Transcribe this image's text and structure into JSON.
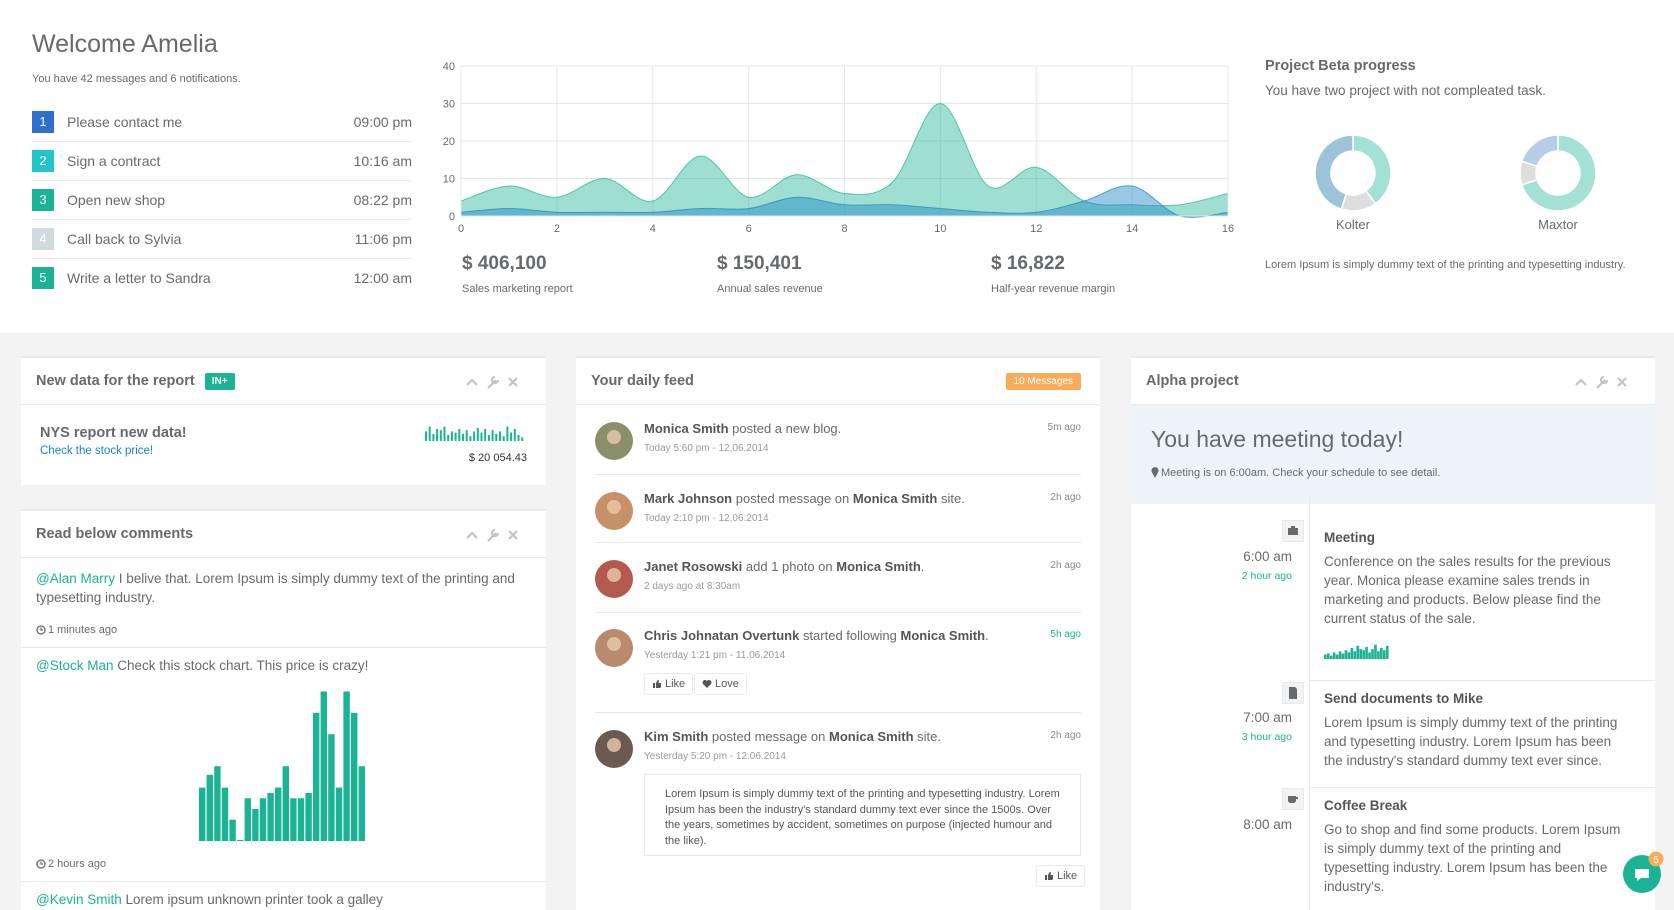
{
  "welcome": {
    "title": "Welcome Amelia",
    "subtitle": "You have 42 messages and 6 notifications.",
    "tasks": [
      {
        "number": 1,
        "text": "Please contact me",
        "time": "09:00 pm",
        "color": "#2f6fcf"
      },
      {
        "number": 2,
        "text": "Sign a contract",
        "time": "10:16 am",
        "color": "#23c6c8"
      },
      {
        "number": 3,
        "text": "Open new shop",
        "time": "08:22 pm",
        "color": "#1ab394"
      },
      {
        "number": 4,
        "text": "Call back to Sylvia",
        "time": "11:06 pm",
        "color": "#d1dade"
      },
      {
        "number": 5,
        "text": "Write a letter to Sandra",
        "time": "12:00 am",
        "color": "#1ab394"
      }
    ]
  },
  "chart_data": {
    "type": "area",
    "x": [
      0,
      1,
      2,
      3,
      4,
      5,
      6,
      7,
      8,
      9,
      10,
      11,
      12,
      13,
      14,
      15,
      16
    ],
    "series": [
      {
        "color": "#1ab394",
        "values": [
          4,
          8,
          5,
          10,
          4,
          16,
          5,
          11,
          6,
          9,
          30,
          8,
          13,
          4,
          3,
          3,
          6
        ]
      },
      {
        "color": "#1c84c6",
        "values": [
          1,
          2,
          1,
          1,
          1,
          2,
          2,
          5,
          3,
          3,
          2,
          1,
          1,
          4,
          8,
          0,
          1
        ]
      }
    ],
    "xlim": [
      0,
      16
    ],
    "ylim": [
      0,
      40
    ],
    "xticks": [
      0,
      2,
      4,
      6,
      8,
      10,
      12,
      14,
      16
    ],
    "yticks": [
      0,
      10,
      20,
      30,
      40
    ],
    "grid": true
  },
  "stats": [
    {
      "value": "$ 406,100",
      "label": "Sales marketing report"
    },
    {
      "value": "$ 150,401",
      "label": "Annual sales revenue"
    },
    {
      "value": "$ 16,822",
      "label": "Half-year revenue margin"
    }
  ],
  "project_beta": {
    "title": "Project Beta progress",
    "subtitle": "You have two project with not compleated task.",
    "donuts": [
      {
        "name": "Kolter",
        "values": [
          40,
          15,
          45
        ],
        "colors": [
          "#a3e1d4",
          "#dedede",
          "#9cc3da"
        ]
      },
      {
        "name": "Maxtor",
        "values": [
          70,
          10,
          20
        ],
        "colors": [
          "#a3e1d4",
          "#dedede",
          "#b5cde6"
        ]
      }
    ],
    "note": "Lorem Ipsum is simply dummy text of the printing and typesetting industry."
  },
  "report": {
    "title": "New data for the report",
    "badge": "IN+",
    "heading": "NYS report new data!",
    "link": "Check the stock price!",
    "amount": "$ 20 054.43",
    "sparkline": [
      8,
      12,
      6,
      10,
      9,
      12,
      5,
      8,
      7,
      10,
      6,
      9,
      4,
      8,
      11,
      7,
      10,
      5,
      9,
      6,
      8,
      4,
      12,
      7,
      10,
      5,
      3
    ]
  },
  "comments": {
    "title": "Read below comments",
    "items": [
      {
        "user": "@Alan Marry",
        "text": "I belive that. Lorem Ipsum is simply dummy text of the printing and typesetting industry.",
        "time": "1 minutes ago"
      },
      {
        "user": "@Stock Man",
        "text": "Check this stock chart. This price is crazy!",
        "time": "2 hours ago",
        "chart": [
          50,
          62,
          70,
          50,
          20,
          1,
          40,
          30,
          40,
          45,
          50,
          70,
          40,
          40,
          45,
          120,
          140,
          100,
          50,
          140,
          120,
          70
        ]
      },
      {
        "user": "@Kevin Smith",
        "text": "Lorem ipsum unknown printer took a galley"
      }
    ]
  },
  "feed": {
    "title": "Your daily feed",
    "badge": "10 Messages",
    "items": [
      {
        "author": "Monica Smith",
        "action": "posted a new blog.",
        "date": "Today 5:60 pm - 12.06.2014",
        "ago": "5m ago"
      },
      {
        "author": "Mark Johnson",
        "action": "posted message on",
        "target": "Monica Smith",
        "end": "site.",
        "date": "Today 2:10 pm - 12.06.2014",
        "ago": "2h ago"
      },
      {
        "author": "Janet Rosowski",
        "action": "add 1 photo on",
        "target": "Monica Smith",
        "end": ".",
        "date": "2 days ago at 8:30am",
        "ago": "2h ago"
      },
      {
        "author": "Chris Johnatan Overtunk",
        "action": "started following",
        "target": "Monica Smith",
        "end": ".",
        "date": "Yesterday 1:21 pm - 11.06.2014",
        "ago": "5h ago",
        "highlight": true,
        "buttons": [
          "Like",
          "Love"
        ]
      },
      {
        "author": "Kim Smith",
        "action": "posted message on",
        "target": "Monica Smith",
        "end": "site.",
        "date": "Yesterday 5:20 pm - 12.06.2014",
        "ago": "2h ago",
        "quote": "Lorem Ipsum is simply dummy text of the printing and typesetting industry. Lorem Ipsum has been the industry's standard dummy text ever since the 1500s. Over the years, sometimes by accident, sometimes on purpose (injected humour and the like).",
        "buttons": [
          "Like"
        ]
      }
    ]
  },
  "alpha": {
    "title": "Alpha project",
    "heading": "You have meeting today!",
    "note": "Meeting is on 6:00am. Check your schedule to see detail.",
    "timeline": [
      {
        "time": "6:00 am",
        "ago": "2 hour ago",
        "title": "Meeting",
        "text": "Conference on the sales results for the previous year. Monica please examine sales trends in marketing and products. Below please find the current status of the sale.",
        "sparkline": [
          4,
          5,
          3,
          6,
          4,
          7,
          5,
          8,
          6,
          10,
          7,
          12,
          9,
          8,
          11,
          6,
          9,
          13,
          7,
          10,
          8,
          12
        ]
      },
      {
        "time": "7:00 am",
        "ago": "3 hour ago",
        "title": "Send documents to Mike",
        "text": "Lorem Ipsum is simply dummy text of the printing and typesetting industry. Lorem Ipsum has been the industry's standard dummy text ever since."
      },
      {
        "time": "8:00 am",
        "title": "Coffee Break",
        "text": "Go to shop and find some products. Lorem Ipsum is simply dummy text of the printing and typesetting industry. Lorem Ipsum has been the industry's."
      }
    ]
  },
  "chat_badge": 5
}
